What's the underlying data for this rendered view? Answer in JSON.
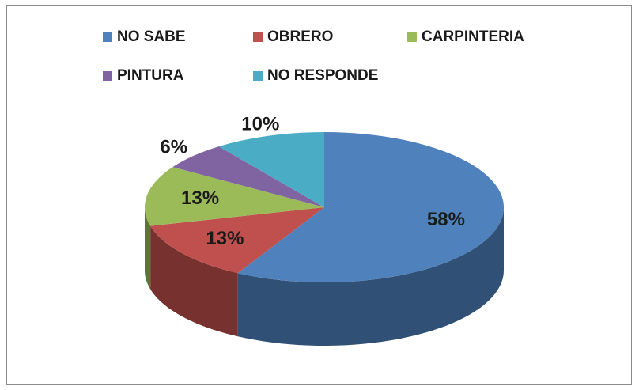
{
  "chart_data": {
    "type": "pie",
    "categories": [
      "NO SABE",
      "OBRERO",
      "CARPINTERIA",
      "PINTURA",
      "NO RESPONDE"
    ],
    "values": [
      58,
      13,
      13,
      6,
      10
    ],
    "value_labels": [
      "58%",
      "13%",
      "13%",
      "6%",
      "10%"
    ],
    "colors": [
      "#4f81bd",
      "#c0504d",
      "#9bbb59",
      "#8064a2",
      "#4bacc6"
    ]
  }
}
